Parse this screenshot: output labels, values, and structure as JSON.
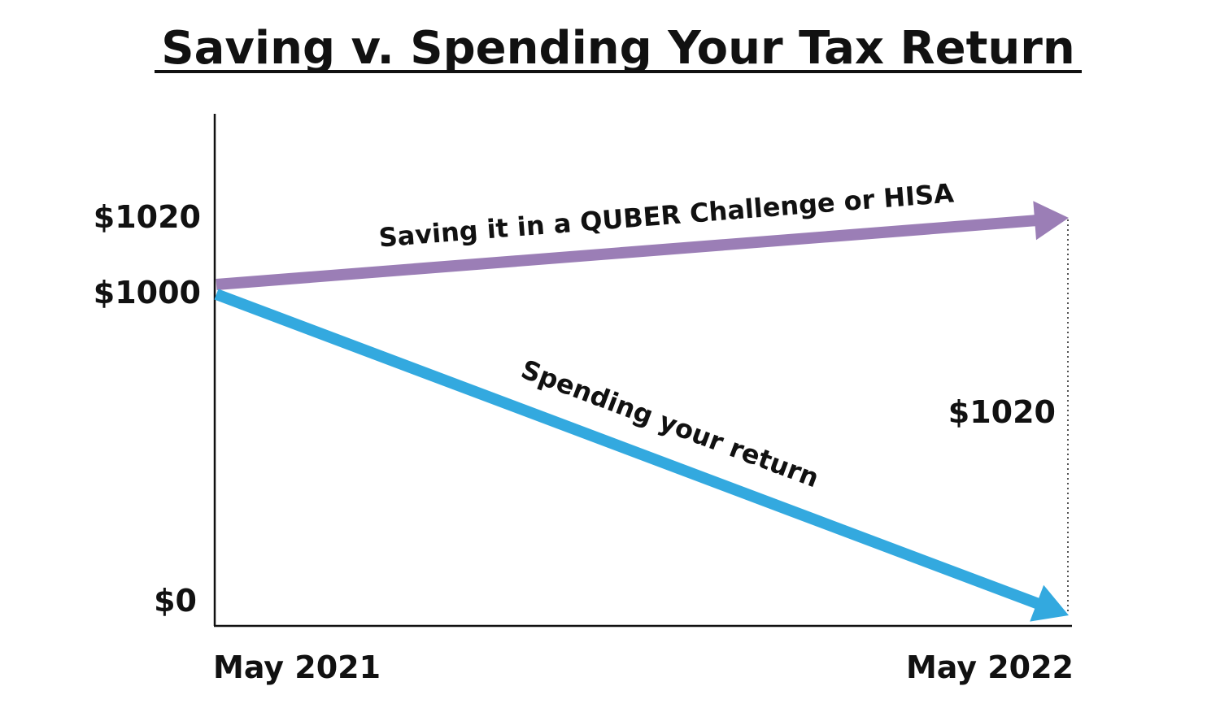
{
  "chart_data": {
    "type": "line",
    "title": "Saving v. Spending Your Tax Return",
    "xlabel": "",
    "ylabel": "",
    "x_categories": [
      "May 2021",
      "May 2022"
    ],
    "y_tick_labels": [
      {
        "value": 0,
        "label": "$0"
      },
      {
        "value": 1000,
        "label": "$1000"
      },
      {
        "value": 1020,
        "label": "$1020"
      }
    ],
    "ylim": [
      0,
      1020
    ],
    "series": [
      {
        "name": "Saving it in a QUBER Challenge or HISA",
        "values": [
          1000,
          1020
        ],
        "color": "#9b7eb6"
      },
      {
        "name": "Spending your return",
        "values": [
          1000,
          0
        ],
        "color": "#33a9df"
      }
    ],
    "difference_label": "$1020",
    "grid": false
  }
}
